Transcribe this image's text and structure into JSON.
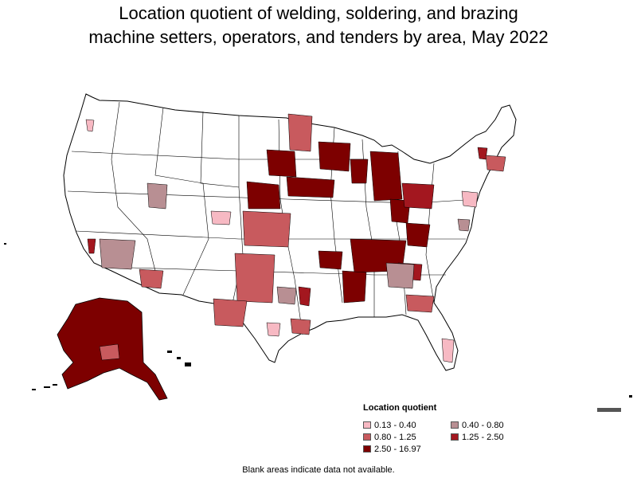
{
  "title_lines": [
    "Location quotient of welding, soldering, and brazing",
    "machine setters, operators, and tenders by area, May 2022"
  ],
  "legend": {
    "title": "Location quotient",
    "items": [
      {
        "label": "0.13 - 0.40",
        "color": "#f7b9c3"
      },
      {
        "label": "0.40 - 0.80",
        "color": "#b88f93"
      },
      {
        "label": "0.80 - 1.25",
        "color": "#c85a5e"
      },
      {
        "label": "1.25 - 2.50",
        "color": "#a3171f"
      },
      {
        "label": "2.50 - 16.97",
        "color": "#7d0000"
      }
    ]
  },
  "footnote": "Blank areas indicate data not available.",
  "colors": {
    "border": "#000000",
    "no_data": "#ffffff"
  }
}
